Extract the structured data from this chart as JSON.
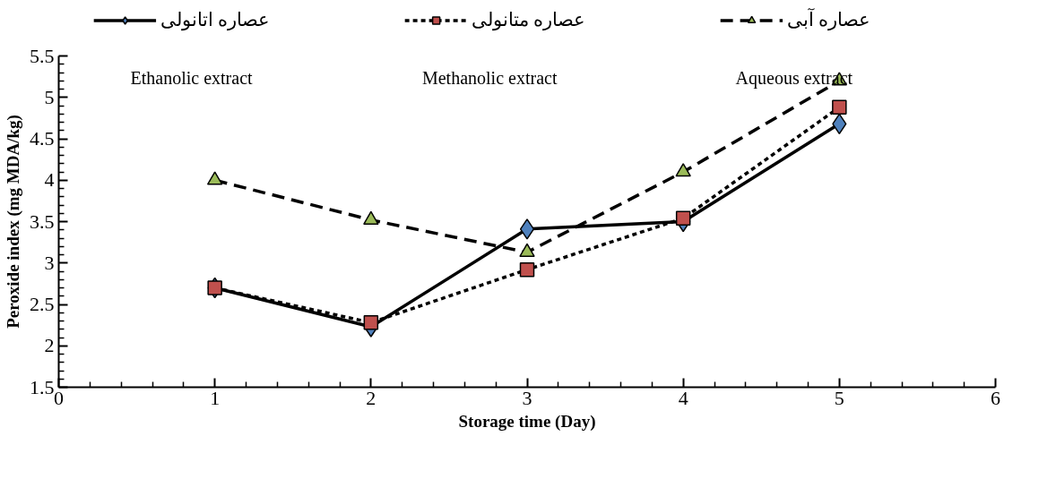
{
  "chart_data": {
    "type": "line",
    "xlabel": "Storage time (Day)",
    "ylabel": "Peroxide index (mg MDA/kg)",
    "x": [
      1,
      2,
      3,
      4,
      5
    ],
    "series": [
      {
        "name": "عصاره اتانولی",
        "color": "#4f81bd",
        "marker": "diamond",
        "line_style": "solid",
        "values": [
          2.7,
          2.23,
          3.41,
          3.5,
          4.68
        ]
      },
      {
        "name": "عصاره متانولی",
        "color": "#c0504d",
        "marker": "square",
        "line_style": "dotted",
        "values": [
          2.7,
          2.28,
          2.92,
          3.54,
          4.88
        ]
      },
      {
        "name": "عصاره آبی",
        "color": "#9bbb59",
        "marker": "triangle",
        "line_style": "dashed",
        "values": [
          4.0,
          3.52,
          3.13,
          4.1,
          5.2
        ]
      }
    ],
    "annotations": [
      "Ethanolic extract",
      "Methanolic extract",
      "Aqueous extract"
    ],
    "xlim": [
      0,
      6
    ],
    "xticks": [
      0,
      1,
      2,
      3,
      4,
      5,
      6
    ],
    "ylim": [
      1.5,
      5.5
    ],
    "yticks": [
      1.5,
      2,
      2.5,
      3,
      3.5,
      4,
      4.5,
      5,
      5.5
    ],
    "grid": false,
    "legend": "top"
  }
}
